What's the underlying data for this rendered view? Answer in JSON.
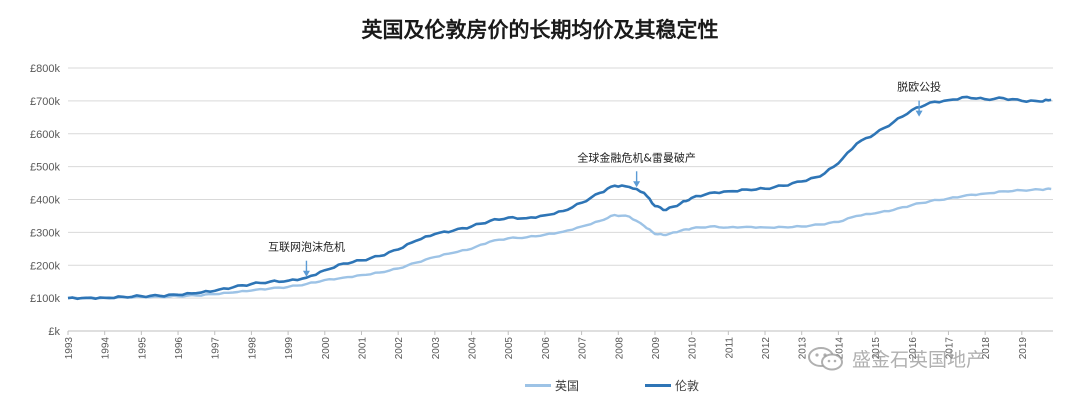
{
  "chart_data": {
    "type": "line",
    "title": "英国及伦敦房价的长期均价及其稳定性",
    "xlabel": "",
    "ylabel": "",
    "ylim": [
      0,
      800000
    ],
    "y_ticks": [
      "£k",
      "£100k",
      "£200k",
      "£300k",
      "£400k",
      "£500k",
      "£600k",
      "£700k",
      "£800k"
    ],
    "x_ticks": [
      "1993",
      "1994",
      "1995",
      "1996",
      "1997",
      "1998",
      "1999",
      "2000",
      "2001",
      "2002",
      "2003",
      "2004",
      "2005",
      "2006",
      "2007",
      "2008",
      "2009",
      "2010",
      "2011",
      "2012",
      "2013",
      "2014",
      "2015",
      "2016",
      "2017",
      "2018",
      "2019"
    ],
    "grid": true,
    "legend_position": "bottom",
    "series": [
      {
        "name": "英国",
        "color": "#9dc3e6",
        "points": [
          [
            1993.0,
            100000
          ],
          [
            1993.5,
            101000
          ],
          [
            1994.0,
            101000
          ],
          [
            1994.5,
            103000
          ],
          [
            1995.0,
            104000
          ],
          [
            1995.5,
            104000
          ],
          [
            1996.0,
            106000
          ],
          [
            1996.5,
            108000
          ],
          [
            1997.0,
            112000
          ],
          [
            1997.5,
            117000
          ],
          [
            1998.0,
            123000
          ],
          [
            1998.5,
            129000
          ],
          [
            1999.0,
            134000
          ],
          [
            1999.5,
            143000
          ],
          [
            2000.0,
            155000
          ],
          [
            2000.5,
            162000
          ],
          [
            2001.0,
            170000
          ],
          [
            2001.5,
            178000
          ],
          [
            2002.0,
            190000
          ],
          [
            2002.5,
            208000
          ],
          [
            2003.0,
            225000
          ],
          [
            2003.5,
            238000
          ],
          [
            2004.0,
            250000
          ],
          [
            2004.5,
            272000
          ],
          [
            2005.0,
            282000
          ],
          [
            2005.5,
            285000
          ],
          [
            2006.0,
            293000
          ],
          [
            2006.5,
            302000
          ],
          [
            2007.0,
            318000
          ],
          [
            2007.5,
            335000
          ],
          [
            2007.9,
            353000
          ],
          [
            2008.3,
            348000
          ],
          [
            2008.7,
            320000
          ],
          [
            2009.0,
            295000
          ],
          [
            2009.3,
            292000
          ],
          [
            2009.7,
            305000
          ],
          [
            2010.0,
            312000
          ],
          [
            2010.5,
            318000
          ],
          [
            2011.0,
            315000
          ],
          [
            2011.5,
            317000
          ],
          [
            2012.0,
            315000
          ],
          [
            2012.5,
            316000
          ],
          [
            2013.0,
            318000
          ],
          [
            2013.5,
            324000
          ],
          [
            2014.0,
            332000
          ],
          [
            2014.5,
            350000
          ],
          [
            2015.0,
            358000
          ],
          [
            2015.5,
            368000
          ],
          [
            2016.0,
            383000
          ],
          [
            2016.5,
            395000
          ],
          [
            2017.0,
            403000
          ],
          [
            2017.5,
            413000
          ],
          [
            2018.0,
            418000
          ],
          [
            2018.5,
            425000
          ],
          [
            2019.0,
            428000
          ],
          [
            2019.5,
            430000
          ],
          [
            2019.8,
            432000
          ]
        ]
      },
      {
        "name": "伦敦",
        "color": "#2e75b6",
        "points": [
          [
            1993.0,
            100000
          ],
          [
            1993.5,
            101000
          ],
          [
            1994.0,
            101000
          ],
          [
            1994.5,
            104000
          ],
          [
            1995.0,
            106000
          ],
          [
            1995.5,
            107000
          ],
          [
            1996.0,
            110000
          ],
          [
            1996.5,
            115000
          ],
          [
            1997.0,
            122000
          ],
          [
            1997.5,
            133000
          ],
          [
            1998.0,
            143000
          ],
          [
            1998.5,
            150000
          ],
          [
            1999.0,
            153000
          ],
          [
            1999.5,
            162000
          ],
          [
            2000.0,
            185000
          ],
          [
            2000.5,
            205000
          ],
          [
            2001.0,
            215000
          ],
          [
            2001.5,
            228000
          ],
          [
            2002.0,
            248000
          ],
          [
            2002.5,
            275000
          ],
          [
            2003.0,
            295000
          ],
          [
            2003.5,
            305000
          ],
          [
            2004.0,
            318000
          ],
          [
            2004.5,
            335000
          ],
          [
            2005.0,
            345000
          ],
          [
            2005.5,
            343000
          ],
          [
            2006.0,
            352000
          ],
          [
            2006.5,
            365000
          ],
          [
            2007.0,
            390000
          ],
          [
            2007.5,
            420000
          ],
          [
            2007.9,
            442000
          ],
          [
            2008.3,
            438000
          ],
          [
            2008.7,
            420000
          ],
          [
            2009.0,
            380000
          ],
          [
            2009.3,
            368000
          ],
          [
            2009.7,
            388000
          ],
          [
            2010.0,
            405000
          ],
          [
            2010.5,
            420000
          ],
          [
            2011.0,
            425000
          ],
          [
            2011.5,
            430000
          ],
          [
            2012.0,
            433000
          ],
          [
            2012.5,
            442000
          ],
          [
            2013.0,
            455000
          ],
          [
            2013.5,
            470000
          ],
          [
            2014.0,
            510000
          ],
          [
            2014.5,
            570000
          ],
          [
            2015.0,
            600000
          ],
          [
            2015.5,
            635000
          ],
          [
            2016.0,
            672000
          ],
          [
            2016.5,
            695000
          ],
          [
            2017.0,
            702000
          ],
          [
            2017.5,
            712000
          ],
          [
            2018.0,
            705000
          ],
          [
            2018.5,
            708000
          ],
          [
            2019.0,
            700000
          ],
          [
            2019.5,
            698000
          ],
          [
            2019.8,
            703000
          ]
        ]
      }
    ],
    "annotations": [
      {
        "text": "互联网泡沫危机",
        "x": 1999.5,
        "y": 153000
      },
      {
        "text": "全球金融危机&雷曼破产",
        "x": 2008.5,
        "y": 425000
      },
      {
        "text": "脱欧公投",
        "x": 2016.2,
        "y": 640000
      }
    ]
  },
  "watermark": {
    "text": "盛金石英国地产",
    "icon": "wechat-icon"
  }
}
